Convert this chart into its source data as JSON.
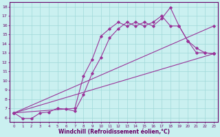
{
  "xlabel": "Windchill (Refroidissement éolien,°C)",
  "bg_color": "#caf0f0",
  "grid_color": "#a0d8d8",
  "line_color": "#993399",
  "xlim": [
    -0.5,
    23.5
  ],
  "ylim": [
    5.5,
    18.5
  ],
  "xticks": [
    0,
    1,
    2,
    3,
    4,
    5,
    6,
    7,
    8,
    9,
    10,
    11,
    12,
    13,
    14,
    15,
    16,
    17,
    18,
    19,
    20,
    21,
    22,
    23
  ],
  "yticks": [
    6,
    7,
    8,
    9,
    10,
    11,
    12,
    13,
    14,
    15,
    16,
    17,
    18
  ],
  "line1_x": [
    0,
    1,
    2,
    3,
    4,
    5,
    6,
    7,
    8,
    9,
    10,
    11,
    12,
    13,
    14,
    15,
    16,
    17,
    18,
    19,
    20,
    21,
    22,
    23
  ],
  "line1_y": [
    6.5,
    5.9,
    5.9,
    6.5,
    6.6,
    7.0,
    6.9,
    6.7,
    8.5,
    10.8,
    12.5,
    14.6,
    15.6,
    16.3,
    15.9,
    16.3,
    15.9,
    16.7,
    17.9,
    15.9,
    14.3,
    13.0,
    13.0,
    12.9
  ],
  "line2_x": [
    0,
    7,
    8,
    9,
    10,
    11,
    12,
    13,
    14,
    15,
    16,
    17,
    18,
    19,
    20,
    21,
    22,
    23
  ],
  "line2_y": [
    6.5,
    7.0,
    10.5,
    12.3,
    14.8,
    15.6,
    16.3,
    15.9,
    16.3,
    15.9,
    16.3,
    17.0,
    15.9,
    15.9,
    14.3,
    13.5,
    13.0,
    12.9
  ],
  "line3_x": [
    0,
    23
  ],
  "line3_y": [
    6.5,
    15.9
  ],
  "line4_x": [
    0,
    23
  ],
  "line4_y": [
    6.5,
    12.9
  ]
}
